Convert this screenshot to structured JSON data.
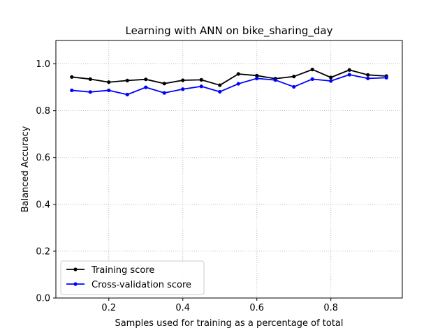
{
  "chart_data": {
    "type": "line",
    "title": "Learning with ANN on bike_sharing_day",
    "xlabel": "Samples used for training as a percentage of total",
    "ylabel": "Balanced Accuracy",
    "xlim": [
      0.057,
      0.993
    ],
    "ylim": [
      0.0,
      1.1
    ],
    "xticks": [
      0.2,
      0.4,
      0.6,
      0.8
    ],
    "xtick_labels": [
      "0.2",
      "0.4",
      "0.6",
      "0.8"
    ],
    "yticks": [
      0.0,
      0.2,
      0.4,
      0.6,
      0.8,
      1.0
    ],
    "ytick_labels": [
      "0.0",
      "0.2",
      "0.4",
      "0.6",
      "0.8",
      "1.0"
    ],
    "grid": true,
    "legend_position": "lower-left",
    "x": [
      0.1,
      0.15,
      0.2,
      0.25,
      0.3,
      0.35,
      0.4,
      0.45,
      0.5,
      0.55,
      0.6,
      0.65,
      0.7,
      0.75,
      0.8,
      0.85,
      0.9,
      0.95
    ],
    "series": [
      {
        "name": "Training score",
        "color": "#000000",
        "values": [
          0.944,
          0.935,
          0.922,
          0.929,
          0.934,
          0.916,
          0.93,
          0.932,
          0.909,
          0.957,
          0.95,
          0.937,
          0.946,
          0.976,
          0.942,
          0.974,
          0.953,
          0.948
        ]
      },
      {
        "name": "Cross-validation score",
        "color": "#0000ff",
        "values": [
          0.887,
          0.88,
          0.887,
          0.869,
          0.9,
          0.876,
          0.892,
          0.904,
          0.881,
          0.915,
          0.938,
          0.931,
          0.902,
          0.935,
          0.927,
          0.954,
          0.938,
          0.941
        ]
      }
    ]
  }
}
